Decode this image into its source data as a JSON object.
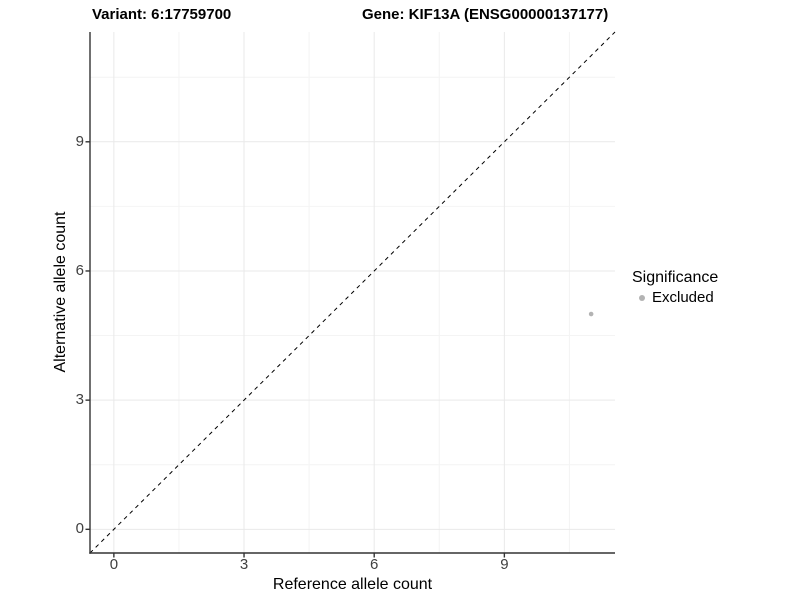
{
  "chart_data": {
    "type": "scatter",
    "title_left": "Variant: 6:17759700",
    "title_right": "Gene: KIF13A (ENSG00000137177)",
    "xlabel": "Reference allele count",
    "ylabel": "Alternative allele count",
    "xlim": [
      -0.55,
      11.55
    ],
    "ylim": [
      -0.55,
      11.55
    ],
    "xticks": [
      0,
      3,
      6,
      9
    ],
    "yticks": [
      0,
      3,
      6,
      9
    ],
    "minor_xticks": [
      1.5,
      4.5,
      7.5,
      10.5
    ],
    "minor_yticks": [
      1.5,
      4.5,
      7.5,
      10.5
    ],
    "grid": true,
    "series": [
      {
        "name": "Excluded",
        "color": "#b3b3b3",
        "points": [
          {
            "x": 11,
            "y": 5
          }
        ]
      }
    ],
    "reference_line": {
      "equation": "y = x",
      "style": "dashed",
      "color": "#000000"
    },
    "legend": {
      "title": "Significance",
      "position": "right",
      "entries": [
        {
          "label": "Excluded",
          "color": "#b3b3b3",
          "marker": "circle"
        }
      ]
    },
    "colors": {
      "axis": "#333333",
      "tick_label": "#404040",
      "grid_major": "#e9e9e9",
      "grid_minor": "#f4f4f4",
      "background": "#ffffff"
    }
  }
}
